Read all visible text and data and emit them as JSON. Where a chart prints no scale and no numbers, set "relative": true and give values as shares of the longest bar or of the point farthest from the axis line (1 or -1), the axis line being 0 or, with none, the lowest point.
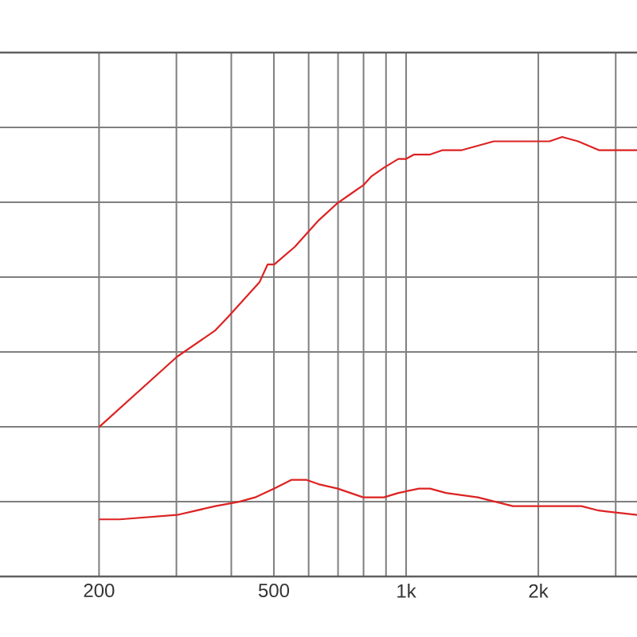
{
  "chart_data": {
    "type": "line",
    "relative": true,
    "log": "x",
    "grid": true,
    "xlim": [
      119,
      3355
    ],
    "xticks": [
      200,
      {
        "value": 300,
        "label": null
      },
      {
        "value": 400,
        "label": null
      },
      500,
      {
        "value": 600,
        "label": null
      },
      {
        "value": 700,
        "label": null
      },
      {
        "value": 800,
        "label": null
      },
      {
        "value": 900,
        "label": null
      },
      {
        "value": 1000,
        "label": "1k"
      },
      {
        "value": 2000,
        "label": "2k"
      },
      {
        "value": 3000,
        "label": null
      }
    ],
    "series": [
      {
        "color": "#dd2222",
        "x": [
          200,
          301,
          368,
          393,
          464,
          484,
          501,
          558,
          632,
          699,
          747,
          799,
          833,
          890,
          960,
          1000,
          1043,
          1134,
          1212,
          1340,
          1457,
          1583,
          1624,
          1721,
          1840,
          1918,
          2120,
          2266,
          2464,
          2746,
          3355
        ],
        "values": [
          0.34,
          0.5,
          0.56,
          0.59,
          0.67,
          0.71,
          0.71,
          0.75,
          0.81,
          0.85,
          0.87,
          0.89,
          0.91,
          0.93,
          0.95,
          0.95,
          0.96,
          0.96,
          0.97,
          0.97,
          0.98,
          0.99,
          0.99,
          0.99,
          0.99,
          0.99,
          0.99,
          1.0,
          0.99,
          0.97,
          0.97
        ]
      },
      {
        "color": "#dd2222",
        "x": [
          200,
          223,
          301,
          368,
          417,
          453,
          501,
          549,
          592,
          632,
          699,
          799,
          890,
          960,
          1070,
          1134,
          1233,
          1457,
          1750,
          2000,
          2506,
          2746,
          3355
        ],
        "values": [
          0.13,
          0.13,
          0.14,
          0.16,
          0.17,
          0.18,
          0.2,
          0.22,
          0.22,
          0.21,
          0.2,
          0.18,
          0.18,
          0.19,
          0.2,
          0.2,
          0.19,
          0.18,
          0.16,
          0.16,
          0.16,
          0.15,
          0.14
        ]
      }
    ]
  }
}
